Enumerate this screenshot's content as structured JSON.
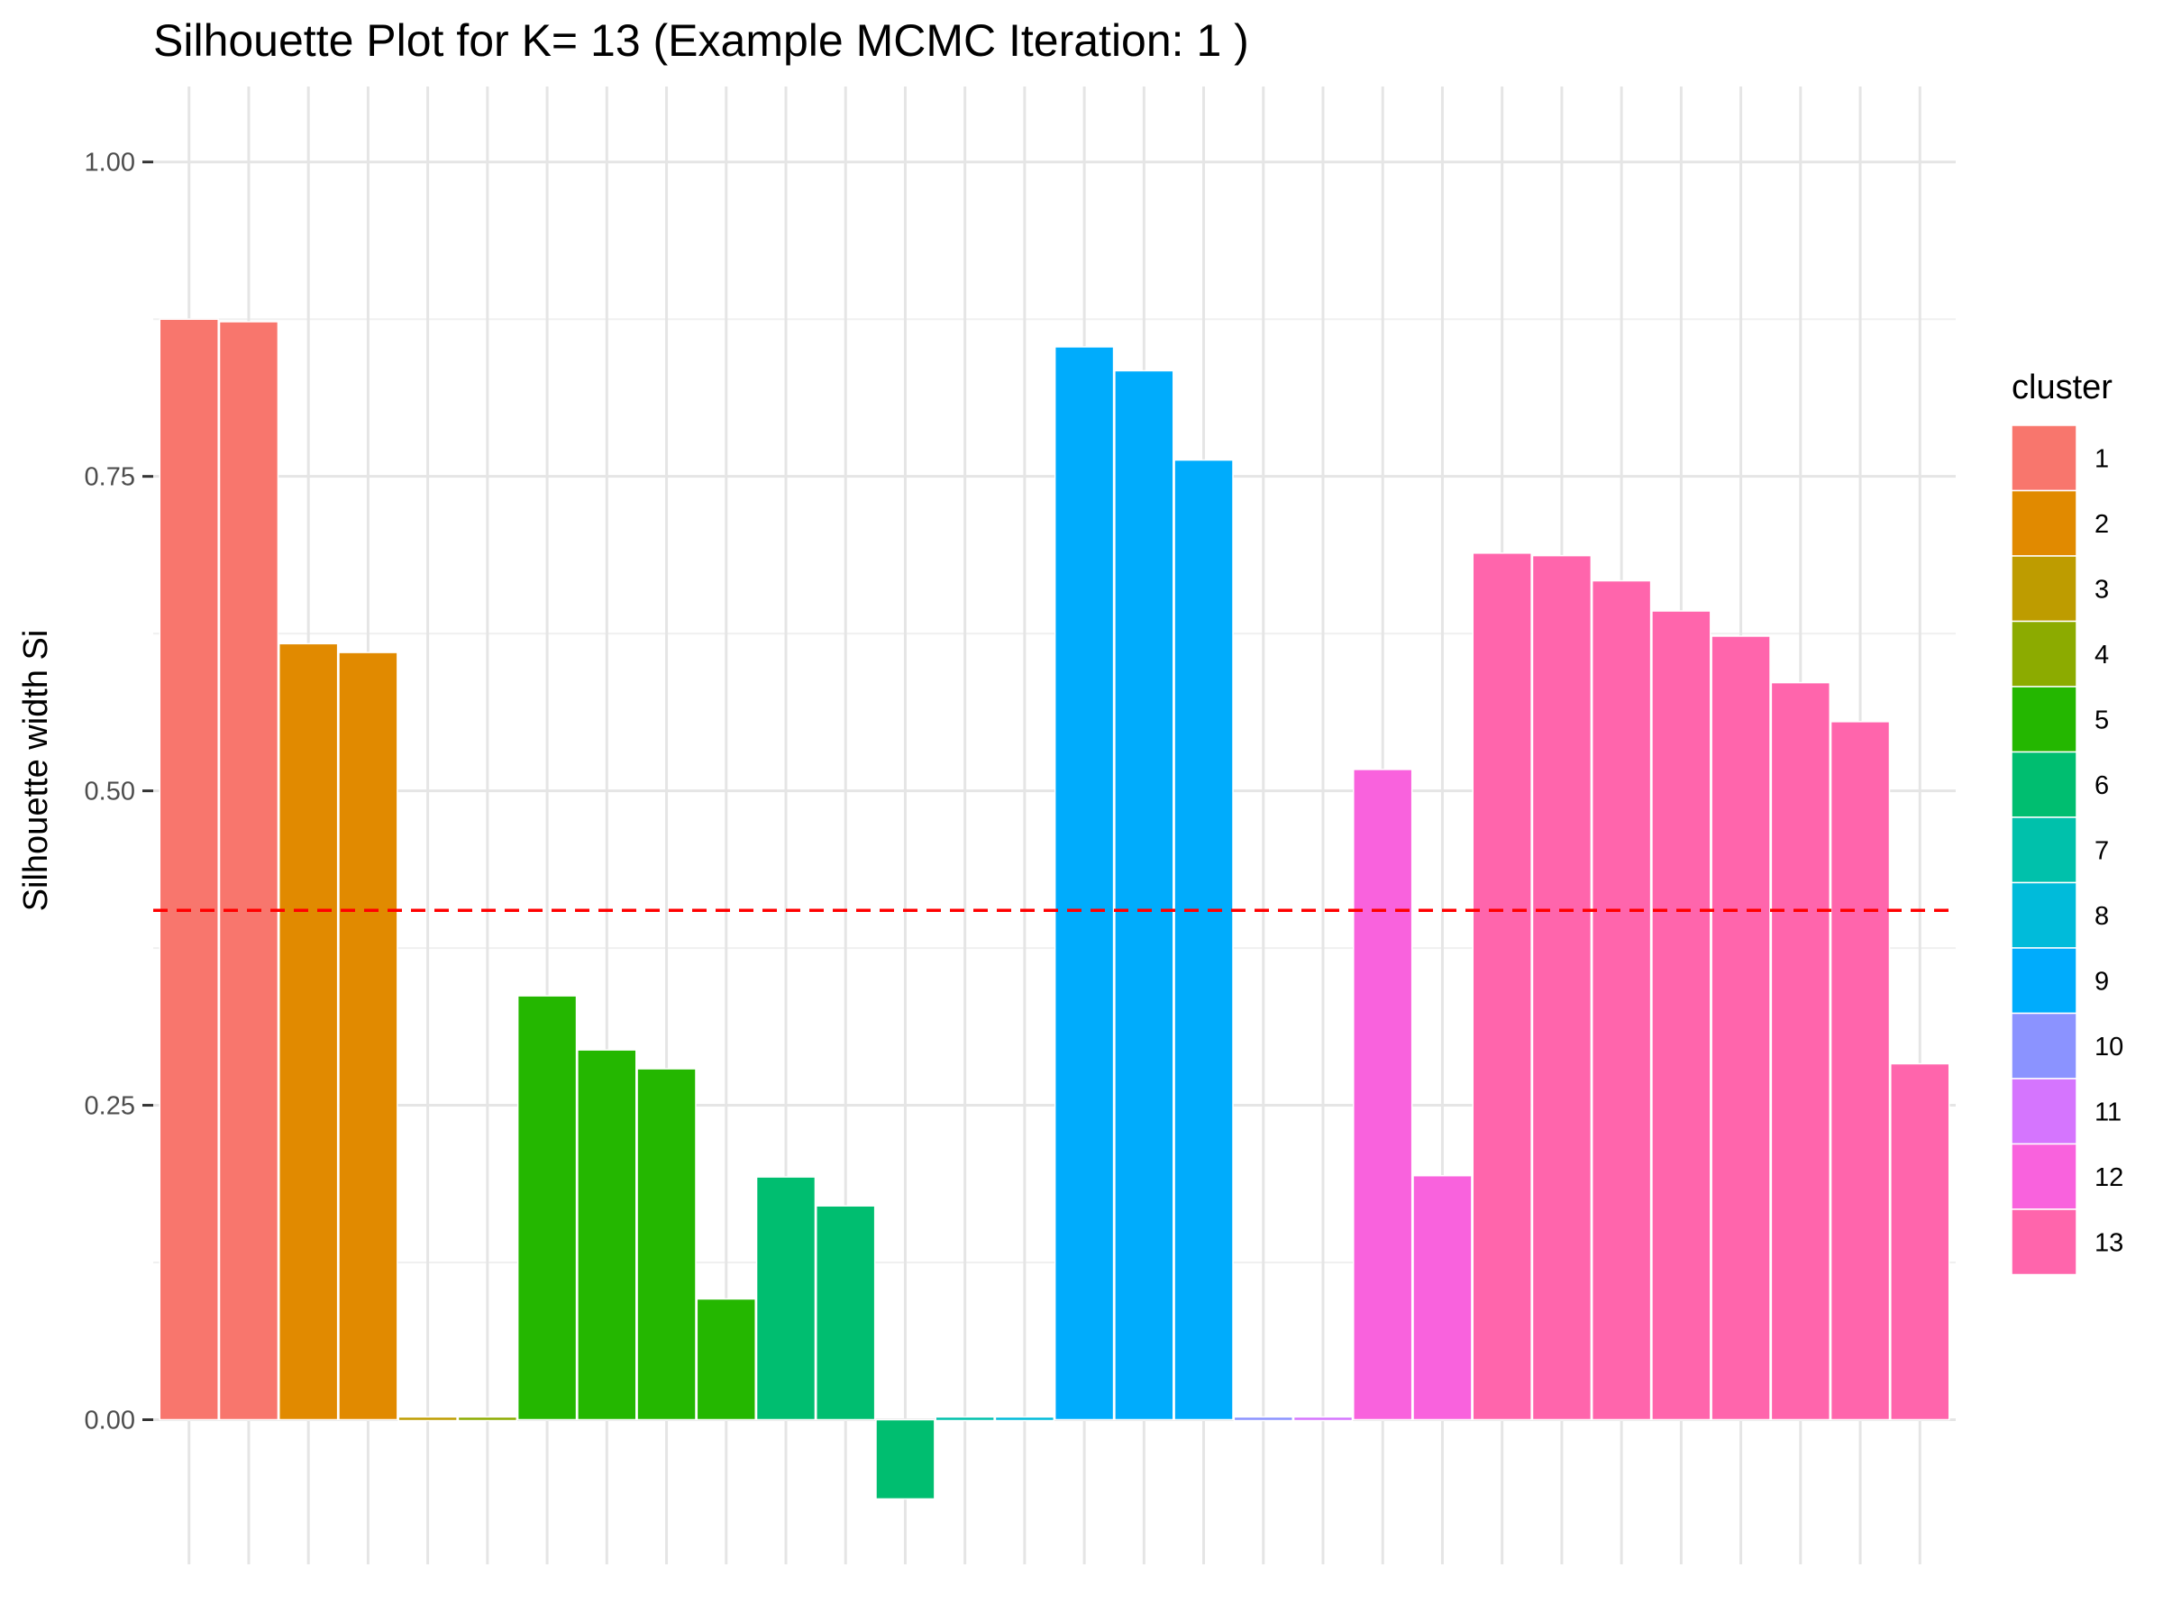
{
  "chart_data": {
    "type": "bar",
    "title": "Silhouette Plot for K= 13 (Example MCMC Iteration: 1 )",
    "xlabel": "",
    "ylabel": "Silhouette width Si",
    "ylim": [
      -0.115,
      1.06
    ],
    "yticks": [
      0,
      0.25,
      0.5,
      0.75,
      1
    ],
    "ytick_labels": [
      "0.00",
      "0.25",
      "0.50",
      "0.75",
      "1.00"
    ],
    "mean_line": 0.405,
    "mean_line_color": "#FF0000",
    "grid": true,
    "legend_position": "right",
    "legend_title": "cluster",
    "clusters": [
      {
        "name": "1",
        "color": "#F8766D"
      },
      {
        "name": "2",
        "color": "#E18A00"
      },
      {
        "name": "3",
        "color": "#BE9C00"
      },
      {
        "name": "4",
        "color": "#8CAB00"
      },
      {
        "name": "5",
        "color": "#24B700"
      },
      {
        "name": "6",
        "color": "#00BE70"
      },
      {
        "name": "7",
        "color": "#00C1AB"
      },
      {
        "name": "8",
        "color": "#00BBDA"
      },
      {
        "name": "9",
        "color": "#00ACFC"
      },
      {
        "name": "10",
        "color": "#8B93FF"
      },
      {
        "name": "11",
        "color": "#D575FE"
      },
      {
        "name": "12",
        "color": "#F962DD"
      },
      {
        "name": "13",
        "color": "#FF65AC"
      }
    ],
    "bars": [
      {
        "cluster": "1",
        "value": 0.875
      },
      {
        "cluster": "1",
        "value": 0.873
      },
      {
        "cluster": "2",
        "value": 0.617
      },
      {
        "cluster": "2",
        "value": 0.61
      },
      {
        "cluster": "3",
        "value": 0.0
      },
      {
        "cluster": "4",
        "value": 0.0
      },
      {
        "cluster": "5",
        "value": 0.337
      },
      {
        "cluster": "5",
        "value": 0.294
      },
      {
        "cluster": "5",
        "value": 0.279
      },
      {
        "cluster": "5",
        "value": 0.096
      },
      {
        "cluster": "6",
        "value": 0.193
      },
      {
        "cluster": "6",
        "value": 0.17
      },
      {
        "cluster": "6",
        "value": -0.063
      },
      {
        "cluster": "7",
        "value": 0.0
      },
      {
        "cluster": "8",
        "value": 0.0
      },
      {
        "cluster": "9",
        "value": 0.853
      },
      {
        "cluster": "9",
        "value": 0.834
      },
      {
        "cluster": "9",
        "value": 0.763
      },
      {
        "cluster": "10",
        "value": 0.0
      },
      {
        "cluster": "11",
        "value": 0.0
      },
      {
        "cluster": "12",
        "value": 0.517
      },
      {
        "cluster": "12",
        "value": 0.194
      },
      {
        "cluster": "13",
        "value": 0.689
      },
      {
        "cluster": "13",
        "value": 0.687
      },
      {
        "cluster": "13",
        "value": 0.667
      },
      {
        "cluster": "13",
        "value": 0.643
      },
      {
        "cluster": "13",
        "value": 0.623
      },
      {
        "cluster": "13",
        "value": 0.586
      },
      {
        "cluster": "13",
        "value": 0.555
      },
      {
        "cluster": "13",
        "value": 0.283
      }
    ]
  }
}
